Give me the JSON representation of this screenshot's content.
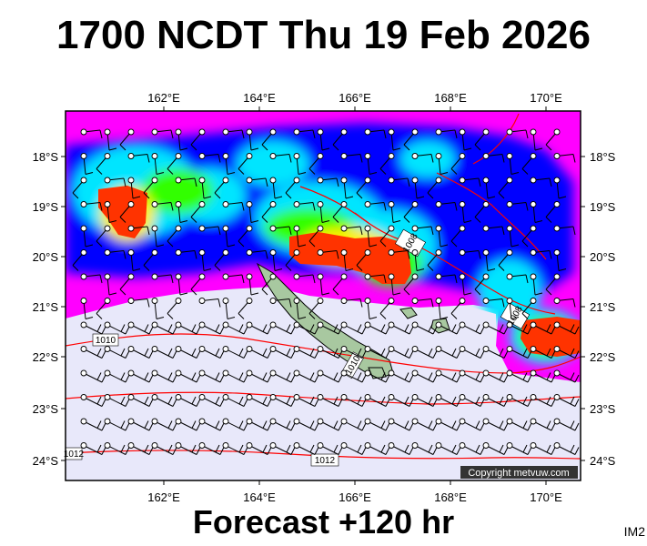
{
  "title": "1700 NCDT Thu 19 Feb 2026",
  "subtitle": "Forecast +120 hr",
  "corner_label": "IM2",
  "copyright": "Copyright metvuw.com",
  "lon_ticks": [
    "162°E",
    "164°E",
    "166°E",
    "168°E",
    "170°E"
  ],
  "lat_ticks": [
    "18°S",
    "19°S",
    "20°S",
    "21°S",
    "22°S",
    "23°S",
    "24°S"
  ],
  "isobar_labels": [
    "1008",
    "1008",
    "1010",
    "1010",
    "1012",
    "1012"
  ],
  "colors": {
    "background": "#e8e8fa",
    "low_rain": "#ff00ff",
    "mid_rain": "#0000ff",
    "high_rain": "#00e5ff",
    "heavy": "#33ff00",
    "extreme": "#ff3300",
    "isobar": "#ff0000"
  }
}
